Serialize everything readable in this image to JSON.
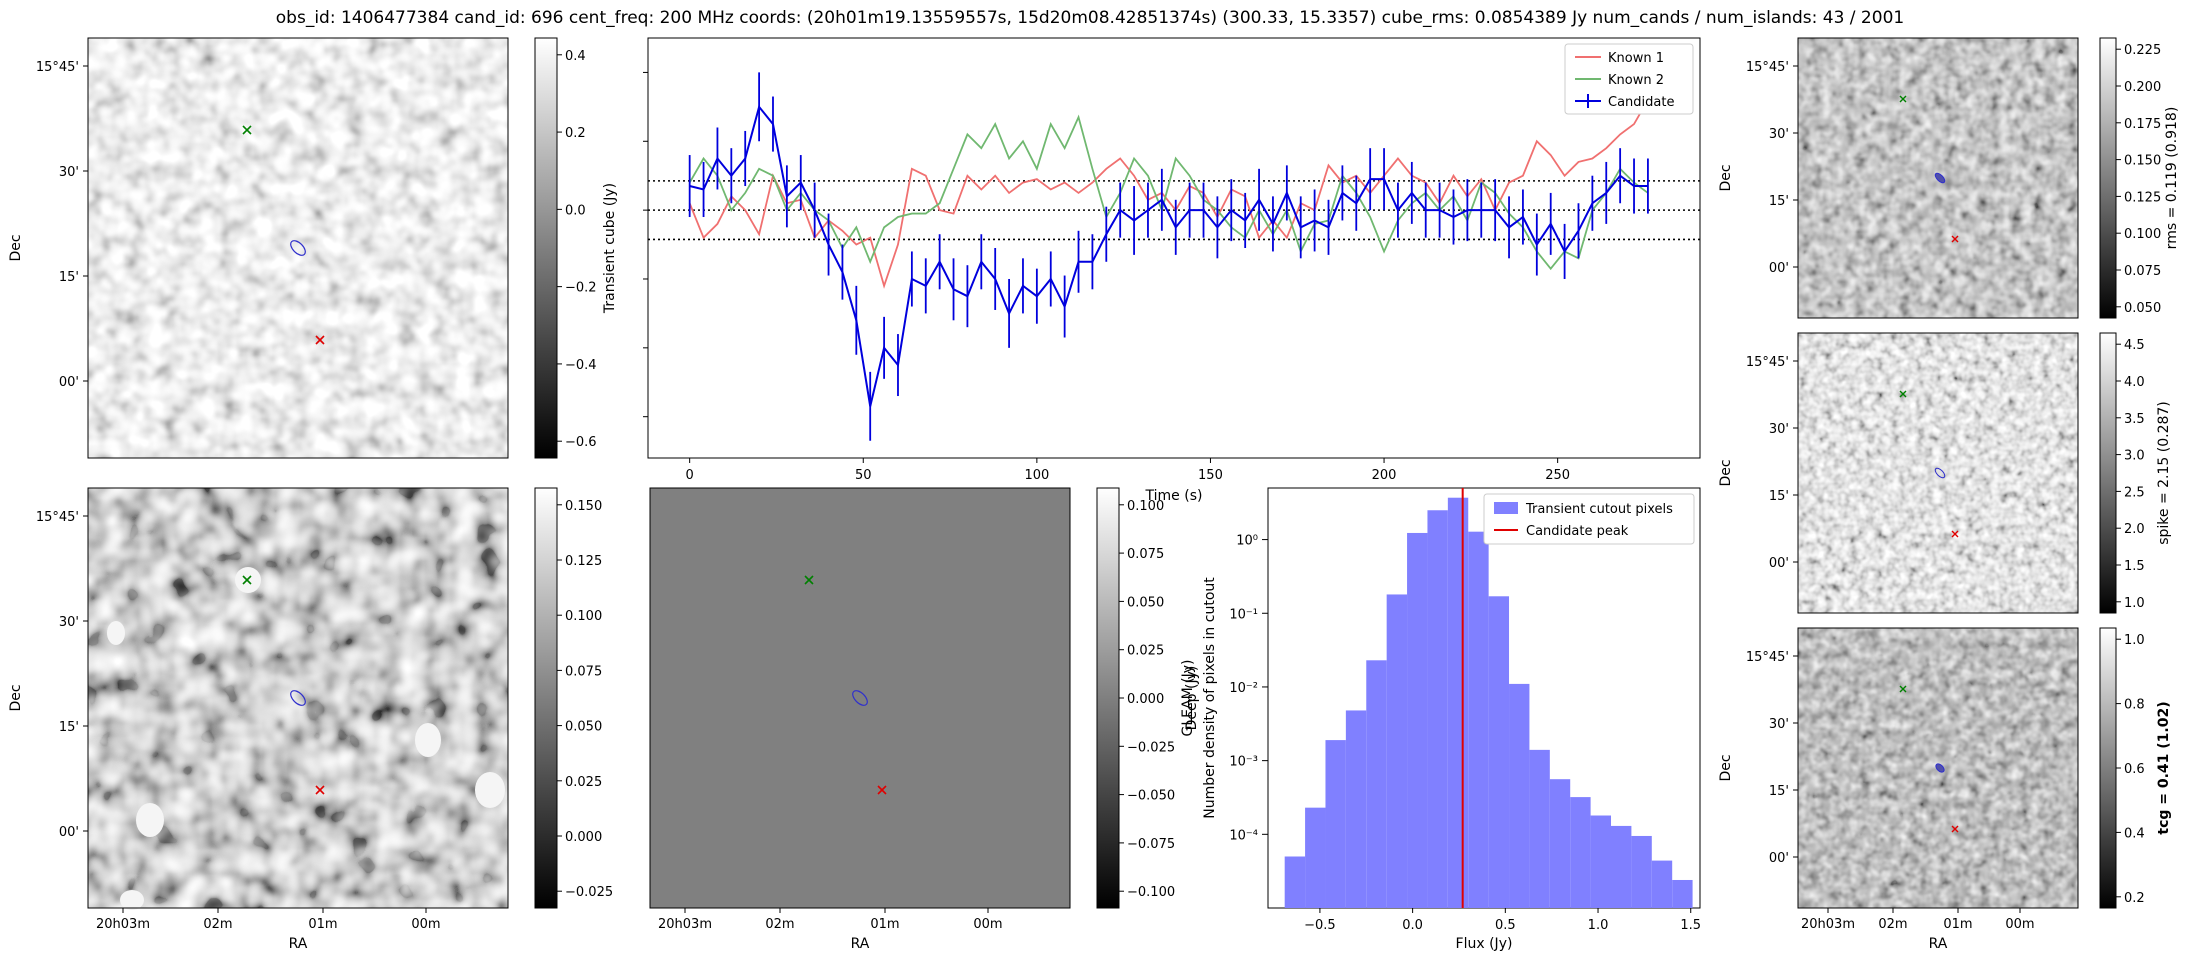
{
  "figure_title": "obs_id: 1406477384 cand_id: 696 cent_freq: 200 MHz coords: (20h01m19.13559557s, 15d20m08.42851374s) (300.33, 15.3357) cube_rms: 0.0854389 Jy num_cands / num_islands: 43 / 2001",
  "colors": {
    "known1": "#f07070",
    "known2": "#70b870",
    "candidate": "#0000dd",
    "hist": "#8080ff",
    "peak": "#e00000",
    "green_marker": "#008000",
    "red_marker": "#e00000",
    "contour": "#3030cc"
  },
  "ra_ticks": [
    "20h03m",
    "02m",
    "01m",
    "00m"
  ],
  "dec_ticks": [
    "15°45'",
    "30'",
    "15'",
    "00'"
  ],
  "labels": {
    "ra": "RA",
    "dec": "Dec"
  },
  "colorbars": {
    "transient": {
      "label": "Transient cube (Jy)",
      "ticks": [
        "0.4",
        "0.2",
        "0.0",
        "−0.2",
        "−0.4",
        "−0.6"
      ]
    },
    "deep": {
      "label": "Deep (Jy)",
      "ticks": [
        "0.150",
        "0.125",
        "0.100",
        "0.075",
        "0.050",
        "0.025",
        "0.000",
        "−0.025"
      ]
    },
    "gleam": {
      "label": "GLEAM (Jy)",
      "ticks": [
        "0.100",
        "0.075",
        "0.050",
        "0.025",
        "0.000",
        "−0.025",
        "−0.050",
        "−0.075",
        "−0.100"
      ]
    },
    "rms": {
      "label": "rms = 0.119 (0.918)",
      "ticks": [
        "0.225",
        "0.200",
        "0.175",
        "0.150",
        "0.125",
        "0.100",
        "0.075",
        "0.050"
      ]
    },
    "spike": {
      "label": "spike = 2.15 (0.287)",
      "ticks": [
        "4.5",
        "4.0",
        "3.5",
        "3.0",
        "2.5",
        "2.0",
        "1.5",
        "1.0"
      ]
    },
    "tcg": {
      "label": "tcg = 0.41 (1.02)",
      "ticks": [
        "1.0",
        "0.8",
        "0.6",
        "0.4",
        "0.2"
      ]
    }
  },
  "chart_data": [
    {
      "type": "line",
      "xlabel": "Time (s)",
      "xlim": [
        -12,
        291
      ],
      "x_ticks": [
        "0",
        "50",
        "100",
        "150",
        "200",
        "250"
      ],
      "reference_lines": [
        0.085,
        0.0,
        -0.085
      ],
      "legend": {
        "placement": "top-right",
        "entries": [
          "Known 1",
          "Known 2",
          "Candidate"
        ]
      },
      "x": [
        0,
        4,
        8,
        12,
        16,
        20,
        24,
        28,
        32,
        36,
        40,
        44,
        48,
        52,
        56,
        60,
        64,
        68,
        72,
        76,
        80,
        84,
        88,
        92,
        96,
        100,
        104,
        108,
        112,
        116,
        120,
        124,
        128,
        132,
        136,
        140,
        144,
        148,
        152,
        156,
        160,
        164,
        168,
        172,
        176,
        180,
        184,
        188,
        192,
        196,
        200,
        204,
        208,
        212,
        216,
        220,
        224,
        228,
        232,
        236,
        240,
        244,
        248,
        252,
        256,
        260,
        264,
        268,
        272,
        276
      ],
      "series": [
        {
          "name": "Known 1",
          "values": [
            0.02,
            -0.08,
            -0.04,
            0.04,
            0.0,
            -0.07,
            0.1,
            0.02,
            0.03,
            -0.08,
            -0.03,
            -0.06,
            -0.1,
            -0.08,
            -0.22,
            -0.1,
            0.12,
            0.1,
            0.0,
            -0.01,
            0.1,
            0.06,
            0.1,
            0.05,
            0.08,
            0.09,
            0.06,
            0.08,
            0.05,
            0.08,
            0.12,
            0.15,
            0.1,
            0.03,
            0.05,
            0.0,
            0.07,
            0.05,
            -0.02,
            0.06,
            0.04,
            -0.08,
            -0.03,
            -0.08,
            0.02,
            0.0,
            0.13,
            0.08,
            0.1,
            0.05,
            0.1,
            0.15,
            0.1,
            0.08,
            0.02,
            0.1,
            0.04,
            0.09,
            0.0,
            0.08,
            0.1,
            0.2,
            0.16,
            0.1,
            0.14,
            0.15,
            0.18,
            0.22,
            0.25,
            0.32
          ]
        },
        {
          "name": "Known 2",
          "values": [
            0.08,
            0.15,
            0.1,
            0.0,
            0.05,
            0.12,
            0.1,
            0.0,
            0.05,
            0.0,
            -0.03,
            -0.11,
            -0.05,
            -0.15,
            -0.05,
            -0.02,
            -0.01,
            -0.01,
            0.02,
            0.12,
            0.22,
            0.18,
            0.25,
            0.15,
            0.2,
            0.12,
            0.25,
            0.18,
            0.27,
            0.12,
            -0.02,
            0.05,
            0.15,
            0.1,
            0.0,
            0.15,
            0.1,
            0.03,
            0.0,
            -0.05,
            -0.08,
            0.0,
            -0.07,
            0.0,
            -0.12,
            -0.04,
            -0.03,
            0.1,
            0.05,
            -0.02,
            -0.12,
            -0.03,
            0.02,
            0.05,
            0.0,
            0.04,
            -0.03,
            0.08,
            0.05,
            -0.01,
            -0.05,
            -0.12,
            -0.17,
            -0.12,
            -0.14,
            0.0,
            0.05,
            0.12,
            0.08,
            0.05
          ]
        },
        {
          "name": "Candidate",
          "values": [
            0.07,
            0.06,
            0.15,
            0.1,
            0.15,
            0.3,
            0.25,
            0.04,
            0.08,
            0.0,
            -0.1,
            -0.18,
            -0.32,
            -0.57,
            -0.4,
            -0.45,
            -0.2,
            -0.22,
            -0.15,
            -0.23,
            -0.25,
            -0.15,
            -0.2,
            -0.3,
            -0.22,
            -0.25,
            -0.2,
            -0.28,
            -0.15,
            -0.15,
            -0.07,
            0.0,
            -0.03,
            0.0,
            0.03,
            -0.05,
            0.0,
            0.0,
            -0.05,
            0.0,
            -0.03,
            0.03,
            -0.04,
            0.05,
            -0.05,
            -0.03,
            -0.05,
            0.05,
            0.02,
            0.09,
            0.09,
            0.0,
            0.05,
            0.0,
            0.0,
            -0.02,
            0.0,
            0.0,
            0.0,
            -0.05,
            -0.02,
            -0.1,
            -0.04,
            -0.12,
            -0.06,
            0.02,
            0.05,
            0.1,
            0.07,
            0.07
          ]
        }
      ],
      "errors": [
        0.09,
        0.08,
        0.09,
        0.08,
        0.08,
        0.1,
        0.08,
        0.09,
        0.08,
        0.08,
        0.09,
        0.08,
        0.1,
        0.1,
        0.09,
        0.09,
        0.08,
        0.08,
        0.08,
        0.09,
        0.09,
        0.08,
        0.09,
        0.1,
        0.08,
        0.08,
        0.08,
        0.09,
        0.09,
        0.08,
        0.08,
        0.08,
        0.1,
        0.08,
        0.09,
        0.08,
        0.08,
        0.08,
        0.09,
        0.09,
        0.08,
        0.09,
        0.08,
        0.08,
        0.09,
        0.09,
        0.08,
        0.08,
        0.08,
        0.09,
        0.09,
        0.08,
        0.09,
        0.08,
        0.08,
        0.08,
        0.09,
        0.08,
        0.09,
        0.09,
        0.08,
        0.09,
        0.09,
        0.08,
        0.08,
        0.08,
        0.09,
        0.08,
        0.08,
        0.08
      ]
    },
    {
      "type": "bar",
      "xlabel": "Flux (Jy)",
      "ylabel": "Number density of pixels in cutout",
      "xlim": [
        -0.78,
        1.55
      ],
      "ylim_log10": [
        -5,
        0.7
      ],
      "y_scale": "log",
      "x_ticks": [
        "−0.5",
        "0.0",
        "0.5",
        "1.0",
        "1.5"
      ],
      "y_ticks": [
        "10⁰",
        "10⁻¹",
        "10⁻²",
        "10⁻³",
        "10⁻⁴"
      ],
      "legend": {
        "placement": "top-right",
        "entries": [
          "Transient cutout pixels",
          "Candidate peak"
        ]
      },
      "bin_edges": [
        -0.69,
        -0.58,
        -0.47,
        -0.36,
        -0.25,
        -0.14,
        -0.03,
        0.08,
        0.19,
        0.3,
        0.41,
        0.52,
        0.63,
        0.74,
        0.85,
        0.96,
        1.07,
        1.18,
        1.29,
        1.4
      ],
      "values": [
        5e-05,
        0.00023,
        0.0019,
        0.0048,
        0.023,
        0.18,
        1.23,
        2.5,
        3.7,
        1.28,
        0.17,
        0.011,
        0.0014,
        0.00056,
        0.00032,
        0.00018,
        0.00013,
        9.5e-05,
        4.4e-05,
        2.4e-05
      ],
      "candidate_peak": 0.27
    }
  ]
}
